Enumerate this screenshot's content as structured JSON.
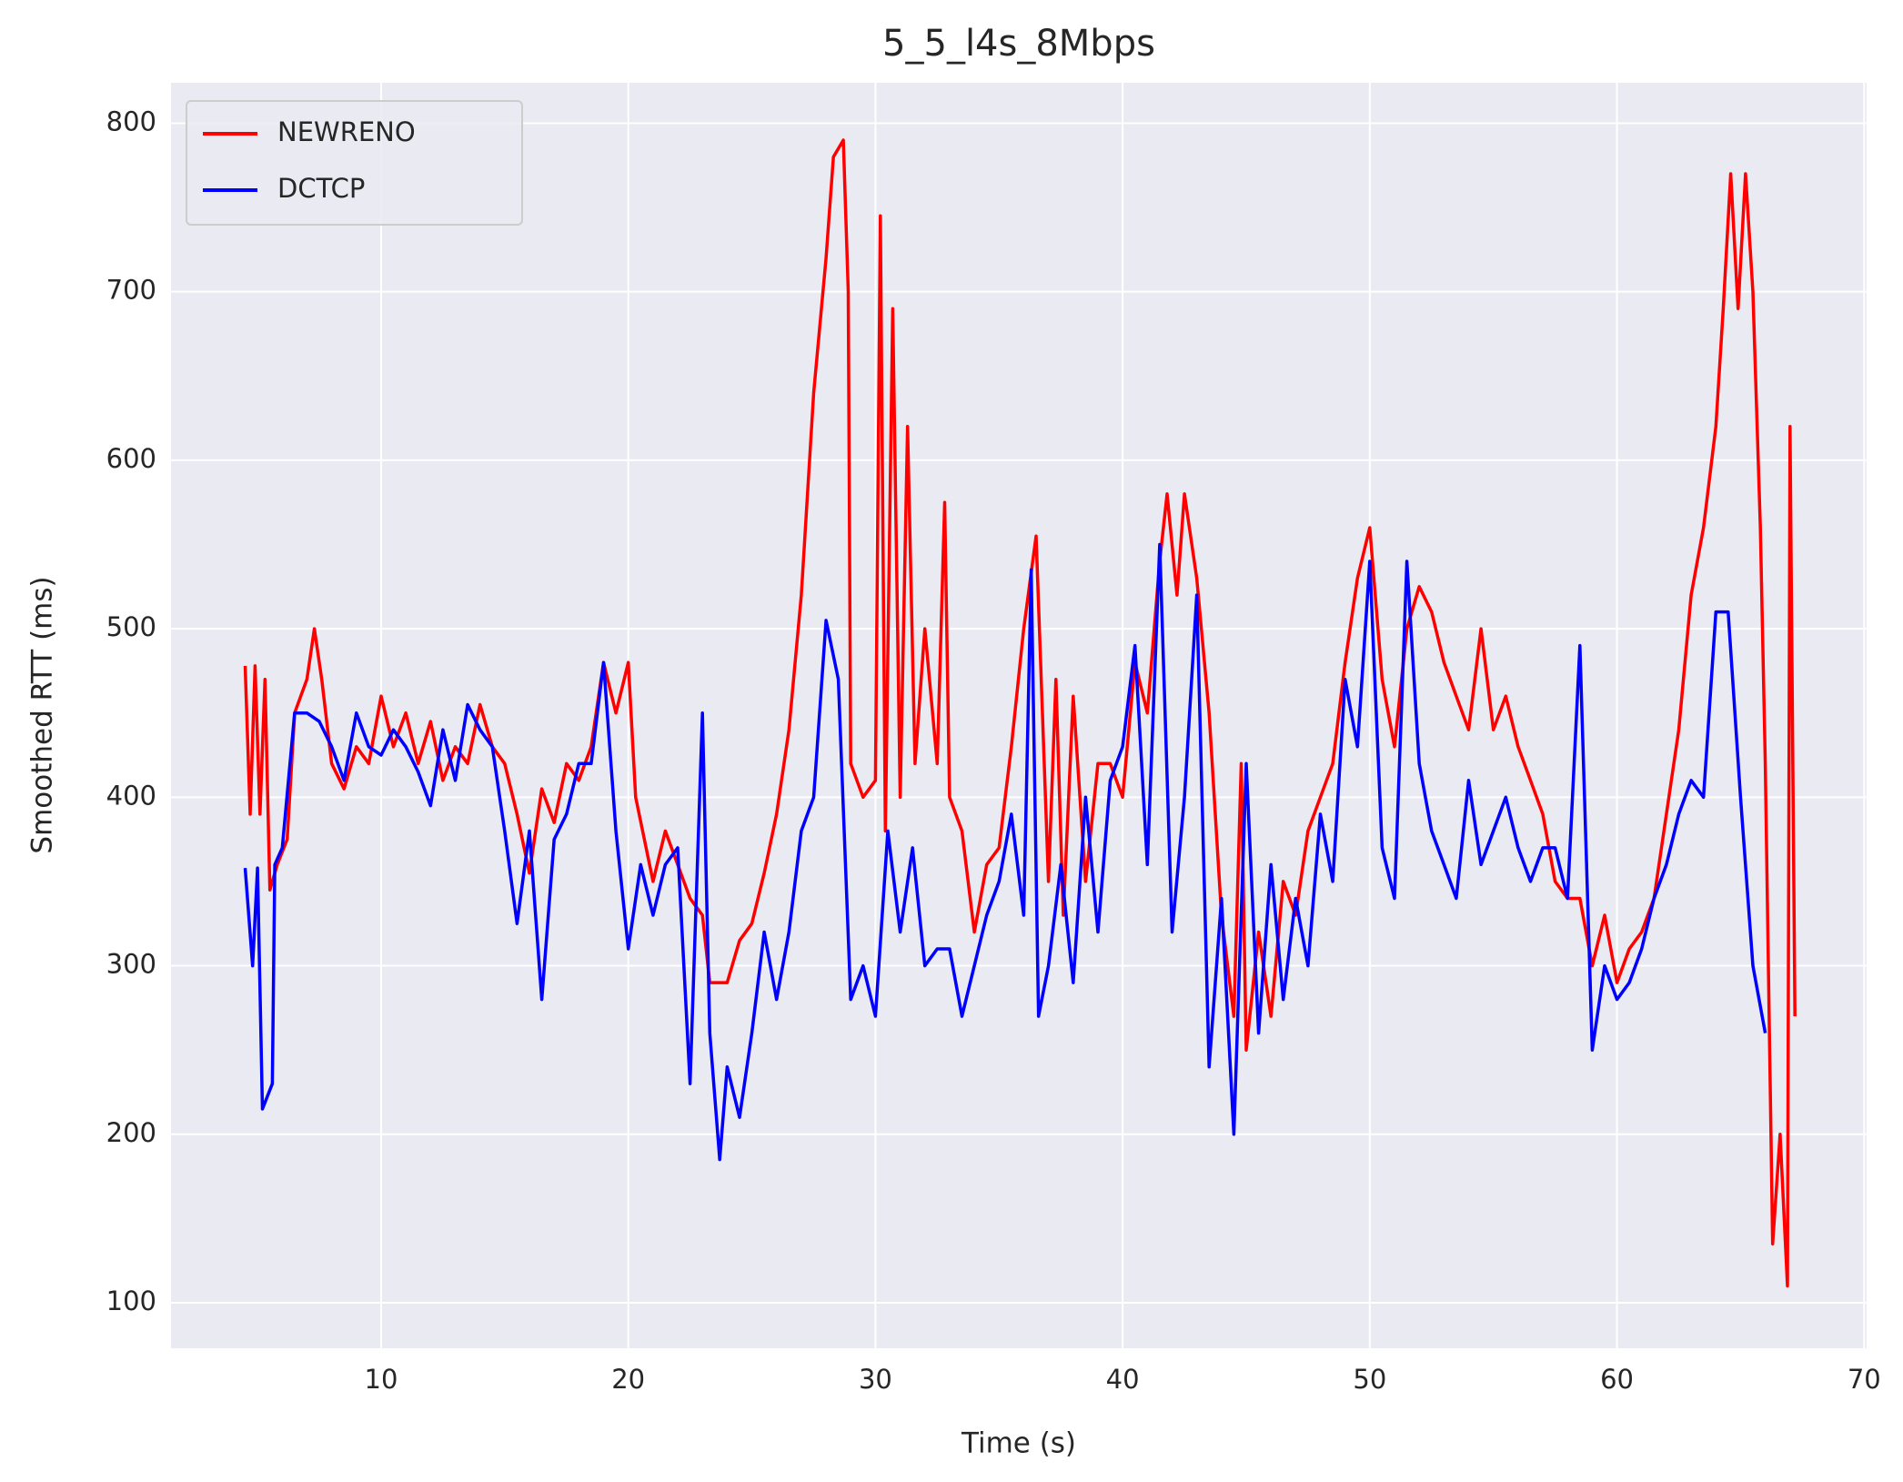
{
  "chart_data": {
    "type": "line",
    "title": "5_5_l4s_8Mbps",
    "xlabel": "Time (s)",
    "ylabel": "Smoothed RTT (ms)",
    "xlim": [
      1.5,
      70.1
    ],
    "ylim": [
      73,
      824
    ],
    "xticks": [
      10,
      20,
      30,
      40,
      50,
      60,
      70
    ],
    "yticks": [
      100,
      200,
      300,
      400,
      500,
      600,
      700,
      800
    ],
    "grid": true,
    "legend": "upper left",
    "series": [
      {
        "name": "NEWRENO",
        "color": "#ff0000",
        "x": [
          4.5,
          4.7,
          4.9,
          5.1,
          5.3,
          5.5,
          5.8,
          6.2,
          6.5,
          7.0,
          7.3,
          7.6,
          8.0,
          8.5,
          9.0,
          9.5,
          10.0,
          10.5,
          11.0,
          11.5,
          12.0,
          12.5,
          13.0,
          13.5,
          14.0,
          14.5,
          15.0,
          15.5,
          16.0,
          16.5,
          17.0,
          17.5,
          18.0,
          18.5,
          19.0,
          19.5,
          20.0,
          20.3,
          21.0,
          21.5,
          22.0,
          22.5,
          23.0,
          23.3,
          24.0,
          24.5,
          25.0,
          25.5,
          26.0,
          26.5,
          27.0,
          27.5,
          28.0,
          28.3,
          28.7,
          28.9,
          29.0,
          29.5,
          30.0,
          30.2,
          30.4,
          30.7,
          31.0,
          31.3,
          31.6,
          32.0,
          32.5,
          32.8,
          33.0,
          33.5,
          34.0,
          34.5,
          35.0,
          35.5,
          36.0,
          36.5,
          37.0,
          37.3,
          37.6,
          38.0,
          38.5,
          39.0,
          39.5,
          40.0,
          40.5,
          41.0,
          41.5,
          41.8,
          42.2,
          42.5,
          43.0,
          43.5,
          44.0,
          44.5,
          44.8,
          45.0,
          45.5,
          46.0,
          46.5,
          47.0,
          47.5,
          48.0,
          48.5,
          49.0,
          49.5,
          50.0,
          50.5,
          51.0,
          51.5,
          52.0,
          52.5,
          53.0,
          53.5,
          54.0,
          54.5,
          55.0,
          55.5,
          56.0,
          56.5,
          57.0,
          57.5,
          58.0,
          58.5,
          59.0,
          59.5,
          60.0,
          60.5,
          61.0,
          61.5,
          62.0,
          62.5,
          63.0,
          63.5,
          64.0,
          64.3,
          64.6,
          64.9,
          65.2,
          65.5,
          65.8,
          66.0,
          66.3,
          66.6,
          66.9,
          67.0,
          67.2
        ],
        "values": [
          478,
          390,
          478,
          390,
          470,
          345,
          360,
          375,
          450,
          470,
          500,
          470,
          420,
          405,
          430,
          420,
          460,
          430,
          450,
          420,
          445,
          410,
          430,
          420,
          455,
          430,
          420,
          390,
          355,
          405,
          385,
          420,
          410,
          430,
          480,
          450,
          480,
          400,
          350,
          380,
          360,
          340,
          330,
          290,
          290,
          315,
          325,
          355,
          390,
          440,
          520,
          640,
          720,
          780,
          790,
          700,
          420,
          400,
          410,
          745,
          380,
          690,
          400,
          620,
          420,
          500,
          420,
          575,
          400,
          380,
          320,
          360,
          370,
          430,
          500,
          555,
          350,
          470,
          330,
          460,
          350,
          420,
          420,
          400,
          480,
          450,
          540,
          580,
          520,
          580,
          530,
          450,
          330,
          270,
          420,
          250,
          320,
          270,
          350,
          330,
          380,
          400,
          420,
          480,
          530,
          560,
          470,
          430,
          500,
          525,
          510,
          480,
          460,
          440,
          500,
          440,
          460,
          430,
          410,
          390,
          350,
          340,
          340,
          300,
          330,
          290,
          310,
          320,
          340,
          390,
          440,
          520,
          560,
          620,
          690,
          770,
          690,
          770,
          700,
          560,
          420,
          135,
          200,
          110,
          620,
          270
        ]
      },
      {
        "name": "DCTCP",
        "color": "#0000ff",
        "x": [
          4.5,
          4.8,
          5.0,
          5.2,
          5.6,
          5.7,
          6.0,
          6.5,
          7.0,
          7.5,
          8.0,
          8.5,
          9.0,
          9.5,
          10.0,
          10.5,
          11.0,
          11.5,
          12.0,
          12.5,
          13.0,
          13.5,
          14.0,
          14.5,
          15.0,
          15.5,
          16.0,
          16.5,
          17.0,
          17.5,
          18.0,
          18.5,
          19.0,
          19.5,
          20.0,
          20.5,
          21.0,
          21.5,
          22.0,
          22.5,
          23.0,
          23.3,
          23.7,
          24.0,
          24.5,
          25.0,
          25.5,
          26.0,
          26.5,
          27.0,
          27.5,
          28.0,
          28.5,
          29.0,
          29.5,
          30.0,
          30.5,
          31.0,
          31.5,
          32.0,
          32.5,
          33.0,
          33.5,
          34.0,
          34.5,
          35.0,
          35.5,
          36.0,
          36.3,
          36.6,
          37.0,
          37.5,
          38.0,
          38.5,
          39.0,
          39.5,
          40.0,
          40.5,
          41.0,
          41.5,
          42.0,
          42.5,
          43.0,
          43.5,
          44.0,
          44.5,
          45.0,
          45.5,
          46.0,
          46.5,
          47.0,
          47.5,
          48.0,
          48.5,
          49.0,
          49.5,
          50.0,
          50.5,
          51.0,
          51.5,
          52.0,
          52.5,
          53.0,
          53.5,
          54.0,
          54.5,
          55.0,
          55.5,
          56.0,
          56.5,
          57.0,
          57.5,
          58.0,
          58.5,
          59.0,
          59.5,
          60.0,
          60.5,
          61.0,
          61.5,
          62.0,
          62.5,
          63.0,
          63.5,
          64.0,
          64.5,
          65.0,
          65.5,
          66.0
        ],
        "values": [
          358,
          300,
          358,
          215,
          230,
          360,
          370,
          450,
          450,
          445,
          430,
          410,
          450,
          430,
          425,
          440,
          430,
          415,
          395,
          440,
          410,
          455,
          440,
          430,
          380,
          325,
          380,
          280,
          375,
          390,
          420,
          420,
          480,
          380,
          310,
          360,
          330,
          360,
          370,
          230,
          450,
          260,
          185,
          240,
          210,
          260,
          320,
          280,
          320,
          380,
          400,
          505,
          470,
          280,
          300,
          270,
          380,
          320,
          370,
          300,
          310,
          310,
          270,
          300,
          330,
          350,
          390,
          330,
          535,
          270,
          300,
          360,
          290,
          400,
          320,
          410,
          430,
          490,
          360,
          550,
          320,
          400,
          520,
          240,
          340,
          200,
          420,
          260,
          360,
          280,
          340,
          300,
          390,
          350,
          470,
          430,
          540,
          370,
          340,
          540,
          420,
          380,
          360,
          340,
          410,
          360,
          380,
          400,
          370,
          350,
          370,
          370,
          340,
          490,
          250,
          300,
          280,
          290,
          310,
          340,
          360,
          390,
          410,
          400,
          510,
          510,
          400,
          300,
          260
        ]
      }
    ]
  }
}
